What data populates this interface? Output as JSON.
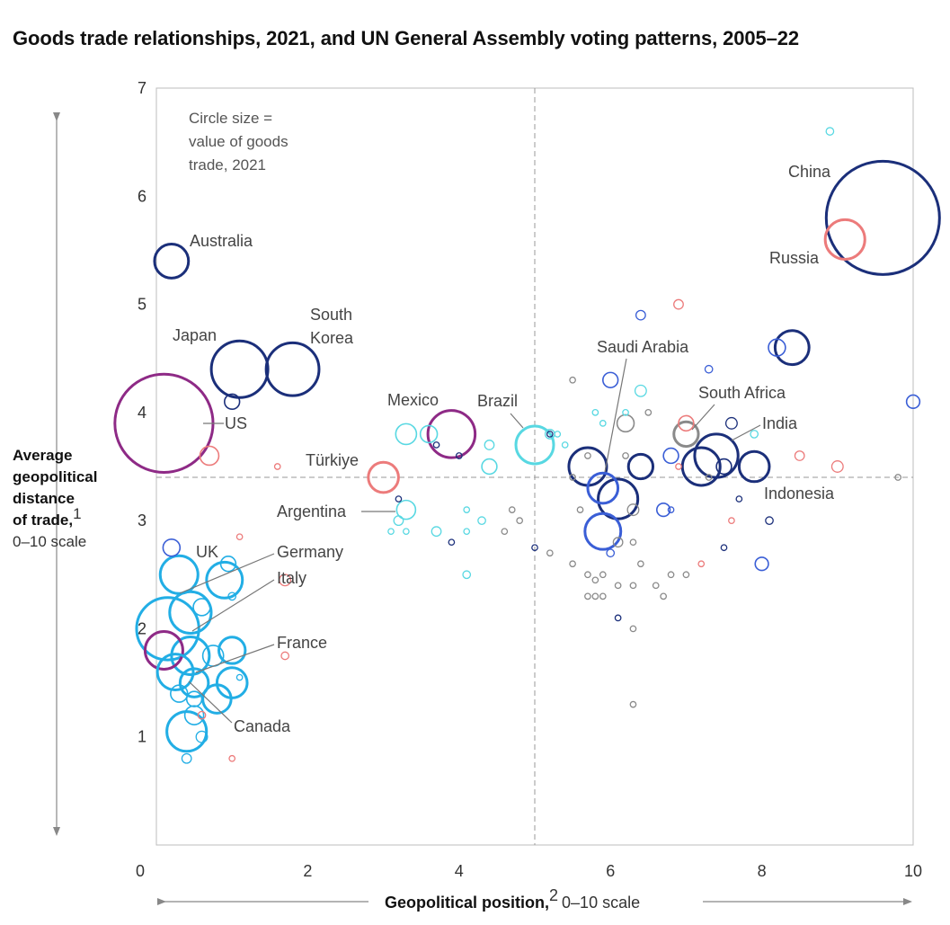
{
  "title": "Goods trade relationships, 2021, and UN General Assembly voting patterns, 2005–22",
  "chart_data": {
    "type": "scatter",
    "title": "Goods trade relationships, 2021, and UN General Assembly voting patterns, 2005–22",
    "xlabel_bold": "Geopolitical position,",
    "xlabel_sup": "2",
    "xlabel_rest": "0–10 scale",
    "ylabel_bold": [
      "Average",
      "geopolitical",
      "distance",
      "of trade,"
    ],
    "ylabel_sup": "1",
    "ylabel_rest": "0–10 scale",
    "xlim": [
      0,
      10
    ],
    "ylim": [
      0,
      7
    ],
    "xticks": [
      "0",
      "2",
      "4",
      "6",
      "8",
      "10"
    ],
    "yticks": [
      "1",
      "2",
      "3",
      "4",
      "5",
      "6",
      "7"
    ],
    "reference_lines": {
      "x": 5,
      "y": 3.4
    },
    "size_note": [
      "Circle size =",
      "value of goods",
      "trade, 2021"
    ],
    "colors": {
      "navy": "#1b2f7a",
      "blue": "#3a5ed6",
      "sky": "#22aee5",
      "cyan": "#58d8e2",
      "purple": "#8e2a86",
      "salmon": "#ec7b7b",
      "gray": "#8a8a8a"
    },
    "points": [
      {
        "x": 9.6,
        "y": 5.8,
        "size": 6.0,
        "color": "navy",
        "label": "China"
      },
      {
        "x": 9.1,
        "y": 5.6,
        "size": 2.1,
        "color": "salmon",
        "label": "Russia"
      },
      {
        "x": 0.1,
        "y": 3.9,
        "size": 5.2,
        "color": "purple",
        "label": "US"
      },
      {
        "x": 0.2,
        "y": 5.4,
        "size": 1.8,
        "color": "navy",
        "label": "Australia"
      },
      {
        "x": 1.1,
        "y": 4.4,
        "size": 3.0,
        "color": "navy",
        "label": "Japan"
      },
      {
        "x": 1.8,
        "y": 4.4,
        "size": 2.8,
        "color": "navy",
        "label": "South Korea"
      },
      {
        "x": 3.9,
        "y": 3.8,
        "size": 2.5,
        "color": "purple",
        "label": "Mexico"
      },
      {
        "x": 5.0,
        "y": 3.7,
        "size": 2.0,
        "color": "cyan",
        "label": "Brazil"
      },
      {
        "x": 3.0,
        "y": 3.4,
        "size": 1.6,
        "color": "salmon",
        "label": "Türkiye"
      },
      {
        "x": 3.3,
        "y": 3.1,
        "size": 1.0,
        "color": "cyan",
        "label": "Argentina"
      },
      {
        "x": 7.0,
        "y": 3.8,
        "size": 1.3,
        "color": "gray",
        "label": "South Africa"
      },
      {
        "x": 7.4,
        "y": 3.6,
        "size": 2.3,
        "color": "navy",
        "label": "India"
      },
      {
        "x": 7.9,
        "y": 3.5,
        "size": 1.6,
        "color": "navy",
        "label": "Indonesia"
      },
      {
        "x": 5.9,
        "y": 3.3,
        "size": 1.6,
        "color": "blue",
        "label": "Saudi Arabia"
      },
      {
        "x": 0.2,
        "y": 2.75,
        "size": 0.9,
        "color": "blue",
        "label": "UK"
      },
      {
        "x": 0.3,
        "y": 2.5,
        "size": 2.0,
        "color": "sky",
        "label": "Germany"
      },
      {
        "x": 0.45,
        "y": 2.15,
        "size": 2.2,
        "color": "sky",
        "label": "Italy"
      },
      {
        "x": 0.45,
        "y": 1.75,
        "size": 2.0,
        "color": "sky",
        "label": "France"
      },
      {
        "x": 0.15,
        "y": 2.0,
        "size": 3.3,
        "color": "sky",
        "label": "Canada"
      },
      {
        "x": 0.1,
        "y": 1.8,
        "size": 2.0,
        "color": "purple",
        "label": ""
      },
      {
        "x": 0.9,
        "y": 2.45,
        "size": 1.9,
        "color": "sky",
        "label": ""
      },
      {
        "x": 0.95,
        "y": 2.6,
        "size": 0.8,
        "color": "sky",
        "label": ""
      },
      {
        "x": 0.6,
        "y": 2.2,
        "size": 0.9,
        "color": "sky",
        "label": ""
      },
      {
        "x": 0.25,
        "y": 1.6,
        "size": 1.9,
        "color": "sky",
        "label": ""
      },
      {
        "x": 0.5,
        "y": 1.5,
        "size": 1.5,
        "color": "sky",
        "label": ""
      },
      {
        "x": 0.5,
        "y": 1.2,
        "size": 1.0,
        "color": "sky",
        "label": ""
      },
      {
        "x": 0.4,
        "y": 1.05,
        "size": 2.1,
        "color": "sky",
        "label": ""
      },
      {
        "x": 0.3,
        "y": 1.4,
        "size": 0.9,
        "color": "sky",
        "label": ""
      },
      {
        "x": 0.5,
        "y": 1.35,
        "size": 0.8,
        "color": "sky",
        "label": ""
      },
      {
        "x": 0.8,
        "y": 1.35,
        "size": 1.5,
        "color": "sky",
        "label": ""
      },
      {
        "x": 1.0,
        "y": 1.5,
        "size": 1.6,
        "color": "sky",
        "label": ""
      },
      {
        "x": 1.0,
        "y": 1.8,
        "size": 1.4,
        "color": "sky",
        "label": ""
      },
      {
        "x": 0.75,
        "y": 1.75,
        "size": 1.1,
        "color": "sky",
        "label": ""
      },
      {
        "x": 0.6,
        "y": 1.0,
        "size": 0.6,
        "color": "sky",
        "label": ""
      },
      {
        "x": 0.4,
        "y": 0.8,
        "size": 0.5,
        "color": "sky",
        "label": ""
      },
      {
        "x": 1.1,
        "y": 1.55,
        "size": 0.3,
        "color": "sky",
        "label": ""
      },
      {
        "x": 1.0,
        "y": 2.3,
        "size": 0.4,
        "color": "sky",
        "label": ""
      },
      {
        "x": 0.7,
        "y": 3.6,
        "size": 1.0,
        "color": "salmon",
        "label": ""
      },
      {
        "x": 1.7,
        "y": 2.45,
        "size": 0.6,
        "color": "salmon",
        "label": ""
      },
      {
        "x": 1.7,
        "y": 1.75,
        "size": 0.4,
        "color": "salmon",
        "label": ""
      },
      {
        "x": 1.1,
        "y": 2.85,
        "size": 0.3,
        "color": "salmon",
        "label": ""
      },
      {
        "x": 1.6,
        "y": 3.5,
        "size": 0.3,
        "color": "salmon",
        "label": ""
      },
      {
        "x": 0.6,
        "y": 1.2,
        "size": 0.4,
        "color": "salmon",
        "label": ""
      },
      {
        "x": 1.0,
        "y": 0.8,
        "size": 0.3,
        "color": "salmon",
        "label": ""
      },
      {
        "x": 1.0,
        "y": 4.1,
        "size": 0.8,
        "color": "navy",
        "label": ""
      },
      {
        "x": 3.3,
        "y": 3.8,
        "size": 1.1,
        "color": "cyan",
        "label": ""
      },
      {
        "x": 3.6,
        "y": 3.8,
        "size": 0.9,
        "color": "cyan",
        "label": ""
      },
      {
        "x": 4.4,
        "y": 3.7,
        "size": 0.5,
        "color": "cyan",
        "label": ""
      },
      {
        "x": 4.4,
        "y": 3.5,
        "size": 0.8,
        "color": "cyan",
        "label": ""
      },
      {
        "x": 3.2,
        "y": 3.0,
        "size": 0.5,
        "color": "cyan",
        "label": ""
      },
      {
        "x": 3.7,
        "y": 2.9,
        "size": 0.5,
        "color": "cyan",
        "label": ""
      },
      {
        "x": 4.3,
        "y": 3.0,
        "size": 0.4,
        "color": "cyan",
        "label": ""
      },
      {
        "x": 4.1,
        "y": 2.9,
        "size": 0.3,
        "color": "cyan",
        "label": ""
      },
      {
        "x": 4.1,
        "y": 3.1,
        "size": 0.3,
        "color": "cyan",
        "label": ""
      },
      {
        "x": 4.1,
        "y": 2.5,
        "size": 0.4,
        "color": "cyan",
        "label": ""
      },
      {
        "x": 3.1,
        "y": 2.9,
        "size": 0.3,
        "color": "cyan",
        "label": ""
      },
      {
        "x": 3.3,
        "y": 2.9,
        "size": 0.3,
        "color": "cyan",
        "label": ""
      },
      {
        "x": 5.2,
        "y": 3.8,
        "size": 0.5,
        "color": "cyan",
        "label": ""
      },
      {
        "x": 6.4,
        "y": 4.2,
        "size": 0.6,
        "color": "cyan",
        "label": ""
      },
      {
        "x": 5.8,
        "y": 4.0,
        "size": 0.3,
        "color": "cyan",
        "label": ""
      },
      {
        "x": 5.9,
        "y": 3.9,
        "size": 0.3,
        "color": "cyan",
        "label": ""
      },
      {
        "x": 6.2,
        "y": 4.0,
        "size": 0.3,
        "color": "cyan",
        "label": ""
      },
      {
        "x": 5.3,
        "y": 3.8,
        "size": 0.3,
        "color": "cyan",
        "label": ""
      },
      {
        "x": 5.4,
        "y": 3.7,
        "size": 0.3,
        "color": "cyan",
        "label": ""
      },
      {
        "x": 7.9,
        "y": 3.8,
        "size": 0.4,
        "color": "cyan",
        "label": ""
      },
      {
        "x": 8.9,
        "y": 6.6,
        "size": 0.4,
        "color": "cyan",
        "label": ""
      },
      {
        "x": 8.4,
        "y": 4.6,
        "size": 1.8,
        "color": "navy",
        "label": ""
      },
      {
        "x": 8.2,
        "y": 4.6,
        "size": 0.9,
        "color": "blue",
        "label": ""
      },
      {
        "x": 6.4,
        "y": 4.9,
        "size": 0.5,
        "color": "blue",
        "label": ""
      },
      {
        "x": 6.9,
        "y": 5.0,
        "size": 0.5,
        "color": "salmon",
        "label": ""
      },
      {
        "x": 6.0,
        "y": 4.3,
        "size": 0.8,
        "color": "blue",
        "label": ""
      },
      {
        "x": 7.3,
        "y": 4.4,
        "size": 0.4,
        "color": "blue",
        "label": ""
      },
      {
        "x": 10.0,
        "y": 4.1,
        "size": 0.7,
        "color": "blue",
        "label": ""
      },
      {
        "x": 7.6,
        "y": 3.9,
        "size": 0.6,
        "color": "navy",
        "label": ""
      },
      {
        "x": 6.2,
        "y": 3.9,
        "size": 0.9,
        "color": "gray",
        "label": ""
      },
      {
        "x": 7.0,
        "y": 3.9,
        "size": 0.8,
        "color": "salmon",
        "label": ""
      },
      {
        "x": 5.7,
        "y": 3.5,
        "size": 2.0,
        "color": "navy",
        "label": ""
      },
      {
        "x": 6.1,
        "y": 3.2,
        "size": 2.1,
        "color": "navy",
        "label": ""
      },
      {
        "x": 6.4,
        "y": 3.5,
        "size": 1.3,
        "color": "navy",
        "label": ""
      },
      {
        "x": 7.2,
        "y": 3.5,
        "size": 2.0,
        "color": "navy",
        "label": ""
      },
      {
        "x": 6.8,
        "y": 3.6,
        "size": 0.8,
        "color": "blue",
        "label": ""
      },
      {
        "x": 5.9,
        "y": 2.9,
        "size": 1.9,
        "color": "blue",
        "label": ""
      },
      {
        "x": 7.5,
        "y": 3.5,
        "size": 0.8,
        "color": "navy",
        "label": ""
      },
      {
        "x": 6.7,
        "y": 3.1,
        "size": 0.7,
        "color": "blue",
        "label": ""
      },
      {
        "x": 8.0,
        "y": 2.6,
        "size": 0.7,
        "color": "blue",
        "label": ""
      },
      {
        "x": 6.3,
        "y": 3.1,
        "size": 0.6,
        "color": "gray",
        "label": ""
      },
      {
        "x": 8.1,
        "y": 3.0,
        "size": 0.4,
        "color": "navy",
        "label": ""
      },
      {
        "x": 7.7,
        "y": 3.2,
        "size": 0.3,
        "color": "navy",
        "label": ""
      },
      {
        "x": 7.5,
        "y": 2.75,
        "size": 0.3,
        "color": "navy",
        "label": ""
      },
      {
        "x": 6.1,
        "y": 2.1,
        "size": 0.3,
        "color": "navy",
        "label": ""
      },
      {
        "x": 6.0,
        "y": 2.7,
        "size": 0.4,
        "color": "blue",
        "label": ""
      },
      {
        "x": 6.8,
        "y": 3.1,
        "size": 0.3,
        "color": "blue",
        "label": ""
      },
      {
        "x": 5.0,
        "y": 2.75,
        "size": 0.3,
        "color": "navy",
        "label": ""
      },
      {
        "x": 3.2,
        "y": 3.2,
        "size": 0.3,
        "color": "navy",
        "label": ""
      },
      {
        "x": 3.9,
        "y": 2.8,
        "size": 0.3,
        "color": "navy",
        "label": ""
      },
      {
        "x": 3.7,
        "y": 3.7,
        "size": 0.3,
        "color": "navy",
        "label": ""
      },
      {
        "x": 4.0,
        "y": 3.6,
        "size": 0.3,
        "color": "navy",
        "label": ""
      },
      {
        "x": 5.2,
        "y": 3.8,
        "size": 0.3,
        "color": "navy",
        "label": ""
      },
      {
        "x": 8.5,
        "y": 3.6,
        "size": 0.5,
        "color": "salmon",
        "label": ""
      },
      {
        "x": 9.0,
        "y": 3.5,
        "size": 0.6,
        "color": "salmon",
        "label": ""
      },
      {
        "x": 7.6,
        "y": 3.0,
        "size": 0.3,
        "color": "salmon",
        "label": ""
      },
      {
        "x": 7.2,
        "y": 2.6,
        "size": 0.3,
        "color": "salmon",
        "label": ""
      },
      {
        "x": 6.9,
        "y": 3.5,
        "size": 0.3,
        "color": "salmon",
        "label": ""
      },
      {
        "x": 9.8,
        "y": 3.4,
        "size": 0.3,
        "color": "gray",
        "label": ""
      },
      {
        "x": 4.7,
        "y": 3.1,
        "size": 0.3,
        "color": "gray",
        "label": ""
      },
      {
        "x": 4.8,
        "y": 3.0,
        "size": 0.3,
        "color": "gray",
        "label": ""
      },
      {
        "x": 4.6,
        "y": 2.9,
        "size": 0.3,
        "color": "gray",
        "label": ""
      },
      {
        "x": 5.2,
        "y": 2.7,
        "size": 0.3,
        "color": "gray",
        "label": ""
      },
      {
        "x": 5.5,
        "y": 2.6,
        "size": 0.3,
        "color": "gray",
        "label": ""
      },
      {
        "x": 5.5,
        "y": 3.4,
        "size": 0.3,
        "color": "gray",
        "label": ""
      },
      {
        "x": 5.5,
        "y": 4.3,
        "size": 0.3,
        "color": "gray",
        "label": ""
      },
      {
        "x": 5.6,
        "y": 3.1,
        "size": 0.3,
        "color": "gray",
        "label": ""
      },
      {
        "x": 5.7,
        "y": 2.5,
        "size": 0.3,
        "color": "gray",
        "label": ""
      },
      {
        "x": 5.8,
        "y": 2.45,
        "size": 0.3,
        "color": "gray",
        "label": ""
      },
      {
        "x": 5.9,
        "y": 2.3,
        "size": 0.3,
        "color": "gray",
        "label": ""
      },
      {
        "x": 5.9,
        "y": 2.5,
        "size": 0.3,
        "color": "gray",
        "label": ""
      },
      {
        "x": 5.7,
        "y": 2.3,
        "size": 0.3,
        "color": "gray",
        "label": ""
      },
      {
        "x": 5.8,
        "y": 2.3,
        "size": 0.3,
        "color": "gray",
        "label": ""
      },
      {
        "x": 6.1,
        "y": 2.4,
        "size": 0.3,
        "color": "gray",
        "label": ""
      },
      {
        "x": 6.1,
        "y": 2.8,
        "size": 0.5,
        "color": "gray",
        "label": ""
      },
      {
        "x": 6.3,
        "y": 2.8,
        "size": 0.3,
        "color": "gray",
        "label": ""
      },
      {
        "x": 6.3,
        "y": 2.0,
        "size": 0.3,
        "color": "gray",
        "label": ""
      },
      {
        "x": 6.3,
        "y": 2.4,
        "size": 0.3,
        "color": "gray",
        "label": ""
      },
      {
        "x": 6.4,
        "y": 2.6,
        "size": 0.3,
        "color": "gray",
        "label": ""
      },
      {
        "x": 6.6,
        "y": 2.4,
        "size": 0.3,
        "color": "gray",
        "label": ""
      },
      {
        "x": 6.7,
        "y": 2.3,
        "size": 0.3,
        "color": "gray",
        "label": ""
      },
      {
        "x": 6.8,
        "y": 2.5,
        "size": 0.3,
        "color": "gray",
        "label": ""
      },
      {
        "x": 7.0,
        "y": 2.5,
        "size": 0.3,
        "color": "gray",
        "label": ""
      },
      {
        "x": 6.5,
        "y": 4.0,
        "size": 0.3,
        "color": "gray",
        "label": ""
      },
      {
        "x": 6.3,
        "y": 1.3,
        "size": 0.3,
        "color": "gray",
        "label": ""
      },
      {
        "x": 7.3,
        "y": 3.4,
        "size": 0.3,
        "color": "gray",
        "label": ""
      },
      {
        "x": 5.7,
        "y": 3.6,
        "size": 0.3,
        "color": "gray",
        "label": ""
      },
      {
        "x": 6.2,
        "y": 3.6,
        "size": 0.3,
        "color": "gray",
        "label": ""
      }
    ]
  }
}
